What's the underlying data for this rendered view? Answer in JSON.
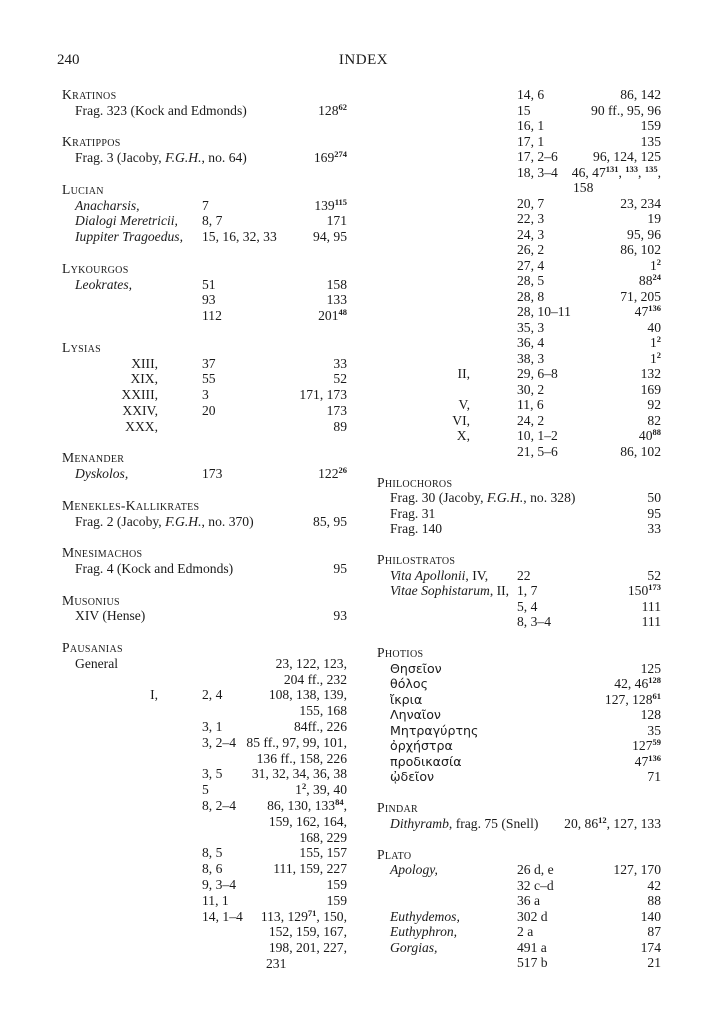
{
  "header": {
    "page_number": "240",
    "title": "INDEX"
  },
  "columns": [
    {
      "rows": [
        {
          "h": "Kratinos"
        },
        {
          "a": [
            "Frag. 323 (Kock and Edmonds)"
          ],
          "p": [
            "128",
            {
              "sup": "62"
            }
          ]
        },
        {},
        {
          "h": "Kratippos"
        },
        {
          "a": [
            "Frag. 3 (Jacoby, ",
            {
              "i": "F.G.H."
            },
            ", no. 64)"
          ],
          "p": [
            "169",
            {
              "sup": "274"
            }
          ]
        },
        {},
        {
          "h": "Lucian"
        },
        {
          "a": [
            {
              "i": "Anacharsis,"
            }
          ],
          "r": "7",
          "p": [
            "139",
            {
              "sup": "115"
            }
          ]
        },
        {
          "a": [
            {
              "i": "Dialogi Meretricii,"
            }
          ],
          "r": "8, 7",
          "p": [
            "171"
          ]
        },
        {
          "a": [
            {
              "i": "Iuppiter Tragoedus,"
            }
          ],
          "r": "15, 16, 32, 33",
          "p": [
            "94, 95"
          ]
        },
        {},
        {
          "h": "Lykourgos"
        },
        {
          "a": [
            {
              "i": "Leokrates,"
            }
          ],
          "r": "51",
          "p": [
            "158"
          ]
        },
        {
          "r": "93",
          "p": [
            "133"
          ]
        },
        {
          "r": "112",
          "p": [
            "201",
            {
              "sup": "48"
            }
          ]
        },
        {},
        {
          "h": "Lysias"
        },
        {
          "n": "XIII,",
          "r": "37",
          "p": [
            "33"
          ]
        },
        {
          "n": "XIX,",
          "r": "55",
          "p": [
            "52"
          ]
        },
        {
          "n": "XXIII,",
          "r": "3",
          "p": [
            "171, 173"
          ]
        },
        {
          "n": "XXIV,",
          "r": "20",
          "p": [
            "173"
          ]
        },
        {
          "n": "XXX,",
          "p": [
            "89"
          ]
        },
        {},
        {
          "h": "Menander"
        },
        {
          "a": [
            {
              "i": "Dyskolos,"
            }
          ],
          "r": "173",
          "p": [
            "122",
            {
              "sup": "26"
            }
          ]
        },
        {},
        {
          "h": "Menekles-Kallikrates"
        },
        {
          "a": [
            "Frag. 2 (Jacoby, ",
            {
              "i": "F.G.H."
            },
            ", no. 370)"
          ],
          "p": [
            "85, 95"
          ]
        },
        {},
        {
          "h": "Mnesimachos"
        },
        {
          "a": [
            "Frag. 4 (Kock and Edmonds)"
          ],
          "p": [
            "95"
          ]
        },
        {},
        {
          "h": "Musonius"
        },
        {
          "a": [
            "XIV (Hense)"
          ],
          "p": [
            "93"
          ]
        },
        {},
        {
          "h": "Pausanias"
        },
        {
          "a": [
            "General"
          ],
          "p": [
            "23, 122, 123,"
          ]
        },
        {
          "p": [
            "204 ff., 232"
          ]
        },
        {
          "n": "I,",
          "r": "2, 4",
          "p": [
            "108, 138, 139,"
          ]
        },
        {
          "p": [
            "155, 168"
          ]
        },
        {
          "r": "3, 1",
          "p": [
            "84ff., 226"
          ]
        },
        {
          "r": "3, 2–4",
          "p": [
            "85 ff., 97, 99, 101,"
          ]
        },
        {
          "p": [
            "136 ff., 158, 226"
          ]
        },
        {
          "r": "3, 5",
          "p": [
            "31, 32, 34, 36, 38"
          ]
        },
        {
          "r": "5",
          "p": [
            "1",
            {
              "sup": "2"
            },
            ", 39, 40"
          ]
        },
        {
          "r": "8, 2–4",
          "p": [
            "86, 130, 133",
            {
              "sup": "84"
            },
            ","
          ]
        },
        {
          "p": [
            "159, 162, 164,"
          ]
        },
        {
          "p": [
            "168, 229"
          ]
        },
        {
          "r": "8, 5",
          "p": [
            "155, 157"
          ]
        },
        {
          "r": "8, 6",
          "p": [
            "111, 159, 227"
          ]
        },
        {
          "r": "9, 3–4",
          "p": [
            "159"
          ]
        },
        {
          "r": "11, 1",
          "p": [
            "159"
          ]
        },
        {
          "r": "14, 1–4",
          "p": [
            "113, 129",
            {
              "sup": "71"
            },
            ", 150,"
          ]
        },
        {
          "p": [
            "152, 159, 167,"
          ]
        },
        {
          "p": [
            "198, 201, 227,"
          ]
        },
        {
          "p": [
            "231"
          ],
          "hang": true
        }
      ]
    },
    {
      "rows": [
        {
          "r": "14, 6",
          "p": [
            "86, 142"
          ]
        },
        {
          "r": "15",
          "p": [
            "90 ff., 95, 96"
          ]
        },
        {
          "r": "16, 1",
          "p": [
            "159"
          ]
        },
        {
          "r": "17, 1",
          "p": [
            "135"
          ]
        },
        {
          "r": "17, 2–6",
          "p": [
            "96, 124, 125"
          ]
        },
        {
          "r": "18, 3–4",
          "p": [
            "46, 47",
            {
              "sup": "131"
            },
            ", ",
            {
              "sup": "133"
            },
            ", ",
            {
              "sup": "135"
            },
            ","
          ]
        },
        {
          "p": [
            "158"
          ],
          "hang": true
        },
        {
          "r": "20, 7",
          "p": [
            "23, 234"
          ]
        },
        {
          "r": "22, 3",
          "p": [
            "19"
          ]
        },
        {
          "r": "24, 3",
          "p": [
            "95, 96"
          ]
        },
        {
          "r": "26, 2",
          "p": [
            "86, 102"
          ]
        },
        {
          "r": "27, 4",
          "p": [
            "1",
            {
              "sup": "2"
            }
          ]
        },
        {
          "r": "28, 5",
          "p": [
            "88",
            {
              "sup": "24"
            }
          ]
        },
        {
          "r": "28, 8",
          "p": [
            "71, 205"
          ]
        },
        {
          "r": "28, 10–11",
          "p": [
            "47",
            {
              "sup": "136"
            }
          ]
        },
        {
          "r": "35, 3",
          "p": [
            "40"
          ]
        },
        {
          "r": "36, 4",
          "p": [
            "1",
            {
              "sup": "2"
            }
          ]
        },
        {
          "r": "38, 3",
          "p": [
            "1",
            {
              "sup": "2"
            }
          ]
        },
        {
          "n": "II,",
          "r": "29, 6–8",
          "p": [
            "132"
          ]
        },
        {
          "r": "30, 2",
          "p": [
            "169"
          ]
        },
        {
          "n": "V,",
          "r": "11, 6",
          "p": [
            "92"
          ]
        },
        {
          "n": "VI,",
          "r": "24, 2",
          "p": [
            "82"
          ]
        },
        {
          "n": "X,",
          "r": "10, 1–2",
          "p": [
            "40",
            {
              "sup": "88"
            }
          ]
        },
        {
          "r": "21, 5–6",
          "p": [
            "86, 102"
          ]
        },
        {},
        {
          "h": "Philochoros"
        },
        {
          "a": [
            "Frag. 30 (Jacoby, ",
            {
              "i": "F.G.H."
            },
            ", no. 328)"
          ],
          "p": [
            "50"
          ]
        },
        {
          "a": [
            "Frag. 31"
          ],
          "p": [
            "95"
          ]
        },
        {
          "a": [
            "Frag. 140"
          ],
          "p": [
            "33"
          ]
        },
        {},
        {
          "h": "Philostratos"
        },
        {
          "a": [
            {
              "i": "Vita Apollonii"
            },
            ", IV,"
          ],
          "r": "22",
          "p": [
            "52"
          ]
        },
        {
          "a": [
            {
              "i": "Vitae Sophistarum"
            },
            ", II,"
          ],
          "r": "1, 7",
          "p": [
            "150",
            {
              "sup": "173"
            }
          ]
        },
        {
          "r": "5, 4",
          "p": [
            "111"
          ]
        },
        {
          "r": "8, 3–4",
          "p": [
            "111"
          ]
        },
        {},
        {
          "h": "Photios"
        },
        {
          "a": [
            {
              "g": "Θησεῖον"
            }
          ],
          "p": [
            "125"
          ]
        },
        {
          "a": [
            {
              "g": "θόλος"
            }
          ],
          "p": [
            "42, 46",
            {
              "sup": "128"
            }
          ]
        },
        {
          "a": [
            {
              "g": "ἴκρια"
            }
          ],
          "p": [
            "127, 128",
            {
              "sup": "61"
            }
          ]
        },
        {
          "a": [
            {
              "g": "Ληναῖον"
            }
          ],
          "p": [
            "128"
          ]
        },
        {
          "a": [
            {
              "g": "Μητραγύρτης"
            }
          ],
          "p": [
            "35"
          ]
        },
        {
          "a": [
            {
              "g": "ὀρχήστρα"
            }
          ],
          "p": [
            "127",
            {
              "sup": "59"
            }
          ]
        },
        {
          "a": [
            {
              "g": "προδικασία"
            }
          ],
          "p": [
            "47",
            {
              "sup": "136"
            }
          ]
        },
        {
          "a": [
            {
              "g": "ᾠδεῖον"
            }
          ],
          "p": [
            "71"
          ]
        },
        {},
        {
          "h": "Pindar"
        },
        {
          "a": [
            {
              "i": "Dithyramb"
            },
            ", frag. 75 (Snell)"
          ],
          "p": [
            "20, 86",
            {
              "sup": "12"
            },
            ", 127, 133"
          ]
        },
        {},
        {
          "h": "Plato"
        },
        {
          "a": [
            {
              "i": "Apology,"
            }
          ],
          "r": "26 d, e",
          "p": [
            "127, 170"
          ]
        },
        {
          "r": "32 c–d",
          "p": [
            "42"
          ]
        },
        {
          "r": "36 a",
          "p": [
            "88"
          ]
        },
        {
          "a": [
            {
              "i": "Euthydemos,"
            }
          ],
          "r": "302 d",
          "p": [
            "140"
          ]
        },
        {
          "a": [
            {
              "i": "Euthyphron,"
            }
          ],
          "r": "2 a",
          "p": [
            "87"
          ]
        },
        {
          "a": [
            {
              "i": "Gorgias,"
            }
          ],
          "r": "491 a",
          "p": [
            "174"
          ]
        },
        {
          "r": "517 b",
          "p": [
            "21"
          ]
        }
      ]
    }
  ]
}
